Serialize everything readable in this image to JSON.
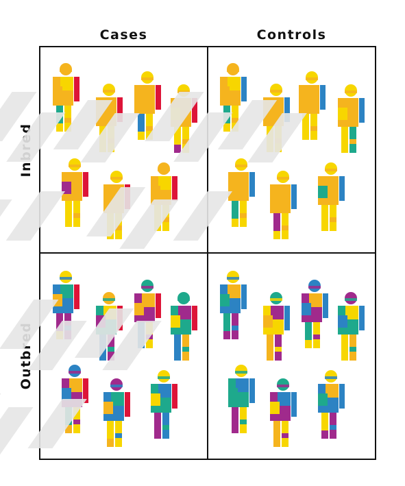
{
  "columns": [
    "Cases",
    "Controls"
  ],
  "rows": [
    "Inbred",
    "Outbred"
  ],
  "colors": {
    "yellow": "#f7d600",
    "orange": "#f5b41e",
    "red": "#dd1438",
    "blue": "#2c83c3",
    "teal": "#1ea98c",
    "purple": "#a02a8c",
    "shadow": "#e6e6e6",
    "border": "#111111"
  },
  "panels": [
    {
      "row": "Inbred",
      "column": "Cases",
      "figures": [
        {
          "scheme": [
            "orange",
            "orange",
            "yellow",
            "orange",
            "red",
            "teal",
            "yellow",
            "yellow"
          ]
        },
        {
          "scheme": [
            "yellow",
            "orange",
            "orange",
            "orange",
            "red",
            "yellow",
            "yellow",
            "yellow"
          ]
        },
        {
          "scheme": [
            "yellow",
            "orange",
            "orange",
            "orange",
            "red",
            "blue",
            "yellow",
            "yellow"
          ]
        },
        {
          "scheme": [
            "yellow",
            "orange",
            "orange",
            "yellow",
            "red",
            "yellow",
            "yellow",
            "purple"
          ]
        },
        {
          "scheme": [
            "yellow",
            "orange",
            "orange",
            "purple",
            "red",
            "yellow",
            "yellow",
            "yellow"
          ]
        },
        {
          "scheme": [
            "yellow",
            "orange",
            "orange",
            "orange",
            "red",
            "yellow",
            "yellow",
            "yellow"
          ]
        },
        {
          "scheme": [
            "orange",
            "orange",
            "yellow",
            "orange",
            "red",
            "yellow",
            "yellow",
            "yellow"
          ]
        }
      ]
    },
    {
      "row": "Inbred",
      "column": "Controls",
      "figures": [
        {
          "scheme": [
            "orange",
            "orange",
            "yellow",
            "orange",
            "blue",
            "teal",
            "yellow",
            "yellow"
          ]
        },
        {
          "scheme": [
            "yellow",
            "orange",
            "orange",
            "orange",
            "blue",
            "yellow",
            "yellow",
            "yellow"
          ]
        },
        {
          "scheme": [
            "yellow",
            "orange",
            "orange",
            "orange",
            "blue",
            "yellow",
            "yellow",
            "yellow"
          ]
        },
        {
          "scheme": [
            "yellow",
            "orange",
            "orange",
            "yellow",
            "blue",
            "yellow",
            "teal",
            "yellow"
          ]
        },
        {
          "scheme": [
            "yellow",
            "orange",
            "orange",
            "orange",
            "blue",
            "teal",
            "yellow",
            "yellow"
          ]
        },
        {
          "scheme": [
            "yellow",
            "orange",
            "orange",
            "orange",
            "blue",
            "purple",
            "yellow",
            "yellow"
          ]
        },
        {
          "scheme": [
            "yellow",
            "orange",
            "orange",
            "teal",
            "blue",
            "yellow",
            "yellow",
            "yellow"
          ]
        }
      ]
    },
    {
      "row": "Outbred",
      "column": "Cases",
      "figures": [
        {
          "scheme": [
            "yellow",
            "blue",
            "teal",
            "orange",
            "red",
            "purple",
            "purple",
            "yellow"
          ]
        },
        {
          "scheme": [
            "orange",
            "teal",
            "yellow",
            "purple",
            "red",
            "blue",
            "purple",
            "blue"
          ]
        },
        {
          "scheme": [
            "teal",
            "purple",
            "orange",
            "orange",
            "red",
            "blue",
            "yellow",
            "blue"
          ]
        },
        {
          "scheme": [
            "teal",
            "teal",
            "purple",
            "yellow",
            "red",
            "blue",
            "orange",
            "blue"
          ]
        },
        {
          "scheme": [
            "blue",
            "purple",
            "orange",
            "blue",
            "red",
            "teal",
            "yellow",
            "orange"
          ]
        },
        {
          "scheme": [
            "purple",
            "blue",
            "teal",
            "orange",
            "red",
            "yellow",
            "yellow",
            "orange"
          ]
        },
        {
          "scheme": [
            "yellow",
            "teal",
            "blue",
            "yellow",
            "red",
            "purple",
            "blue",
            "purple"
          ]
        }
      ]
    },
    {
      "row": "Outbred",
      "column": "Controls",
      "figures": [
        {
          "scheme": [
            "yellow",
            "blue",
            "orange",
            "teal",
            "blue",
            "teal",
            "purple",
            "purple"
          ]
        },
        {
          "scheme": [
            "teal",
            "yellow",
            "purple",
            "orange",
            "blue",
            "orange",
            "purple",
            "orange"
          ]
        },
        {
          "scheme": [
            "blue",
            "purple",
            "orange",
            "blue",
            "blue",
            "teal",
            "yellow",
            "yellow"
          ]
        },
        {
          "scheme": [
            "purple",
            "teal",
            "yellow",
            "blue",
            "blue",
            "yellow",
            "orange",
            "yellow"
          ]
        },
        {
          "scheme": [
            "yellow",
            "teal",
            "blue",
            "teal",
            "blue",
            "purple",
            "yellow",
            "purple"
          ]
        },
        {
          "scheme": [
            "teal",
            "purple",
            "blue",
            "yellow",
            "blue",
            "orange",
            "yellow",
            "orange"
          ]
        },
        {
          "scheme": [
            "yellow",
            "blue",
            "orange",
            "teal",
            "blue",
            "yellow",
            "purple",
            "purple"
          ]
        }
      ]
    }
  ]
}
